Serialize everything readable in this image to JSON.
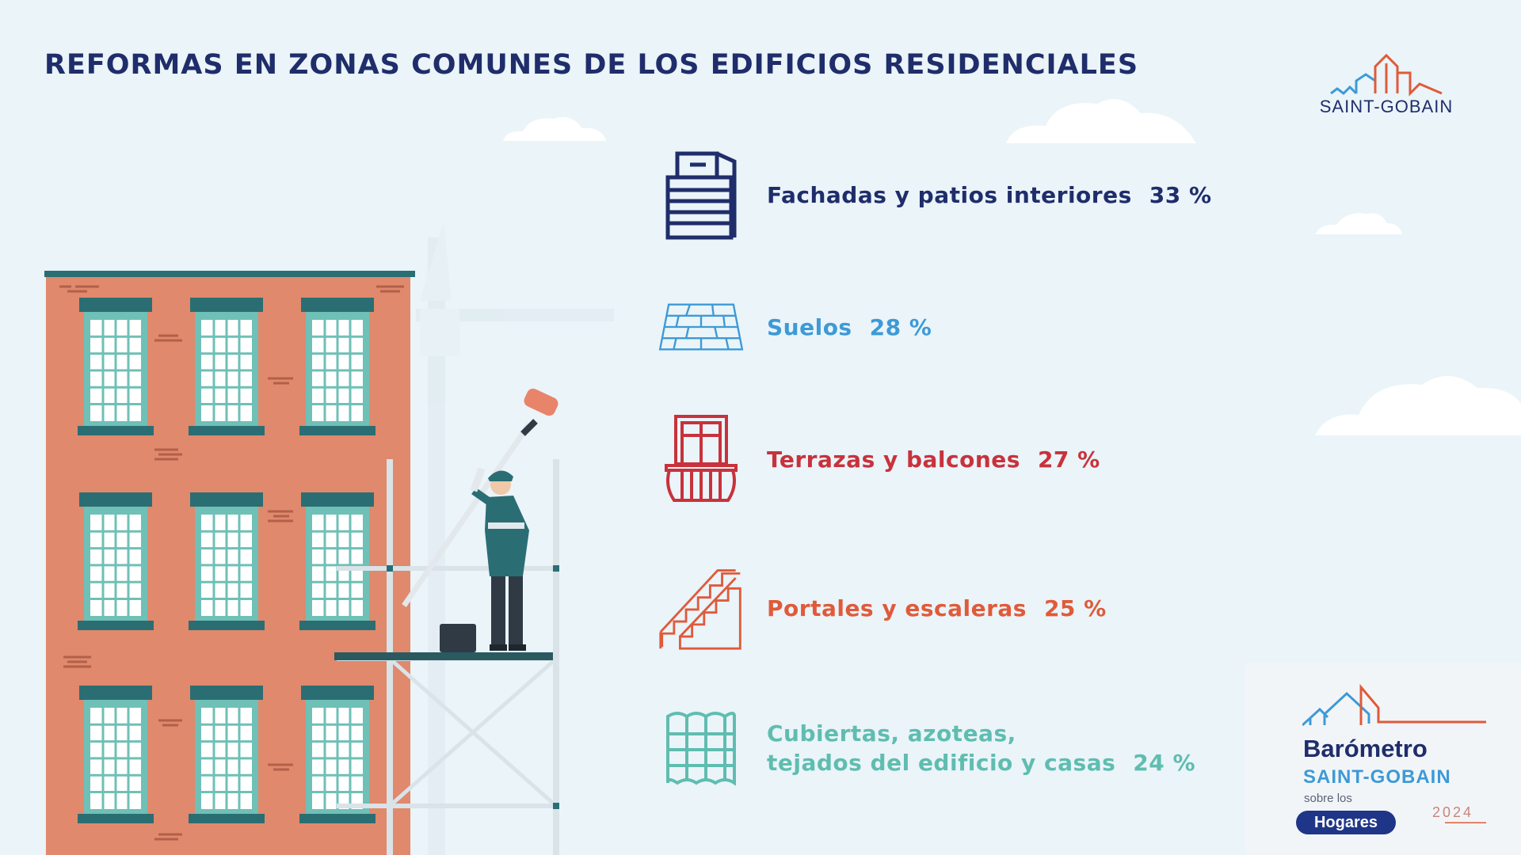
{
  "page": {
    "title": "REFORMAS EN ZONAS COMUNES DE LOS EDIFICIOS RESIDENCIALES"
  },
  "logo": {
    "text": "SAINT-GOBAIN"
  },
  "stats": [
    {
      "label": "Fachadas y patios interiores",
      "value": "33 %",
      "icon": "office-building-icon",
      "color": "#1f2d6b"
    },
    {
      "label": "Suelos",
      "value": "28 %",
      "icon": "floor-tiles-icon",
      "color": "#3d9ad6"
    },
    {
      "label": "Terrazas y balcones",
      "value": "27 %",
      "icon": "balcony-icon",
      "color": "#c8323c"
    },
    {
      "label": "Portales y escaleras",
      "value": "25 %",
      "icon": "staircase-icon",
      "color": "#e05a3a"
    },
    {
      "label_line1": "Cubiertas, azoteas,",
      "label_line2": "tejados del edificio y casas",
      "value": "24 %",
      "icon": "roof-tiles-icon",
      "color": "#5fbdb0"
    }
  ],
  "badge": {
    "title": "Barómetro",
    "brand": "SAINT-GOBAIN",
    "sobre": "sobre los",
    "pill": "Hogares",
    "year": "2024"
  }
}
